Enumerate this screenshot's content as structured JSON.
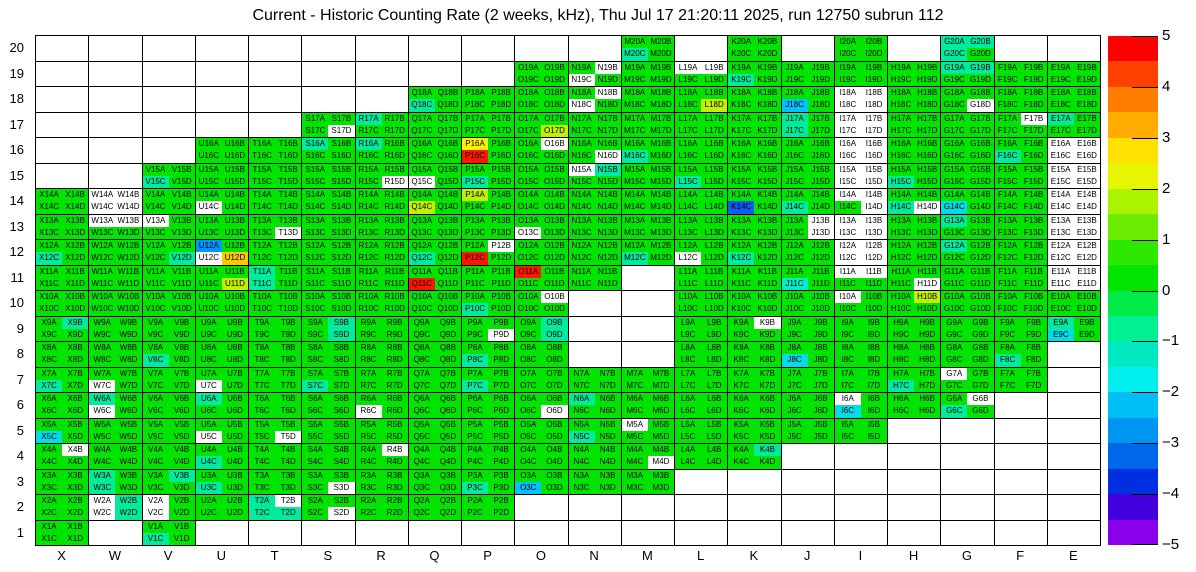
{
  "title": "Current - Historic Counting Rate (2 weeks, kHz), Thu Jul 17 21:20:11 2025, run 12750 subrun 112",
  "chart_data": {
    "type": "heatmap",
    "title": "Current - Historic Counting Rate (2 weeks, kHz), Thu Jul 17 21:20:11 2025, run 12750 subrun 112",
    "columns": [
      "X",
      "W",
      "V",
      "U",
      "T",
      "S",
      "R",
      "Q",
      "P",
      "O",
      "N",
      "M",
      "L",
      "K",
      "J",
      "I",
      "H",
      "G",
      "F",
      "E"
    ],
    "rows": [
      20,
      19,
      18,
      17,
      16,
      15,
      14,
      13,
      12,
      11,
      10,
      9,
      8,
      7,
      6,
      5,
      4,
      3,
      2,
      1
    ],
    "quarters": [
      "A",
      "B",
      "C",
      "D"
    ],
    "label_format": "{col}{row}{quarter}",
    "palette": {
      "g": "#00E400",
      "t": "#00EC9C",
      "c": "#00DDE6",
      "m": "#00EFC8",
      "s": "#00C3FF",
      "b": "#0095FF",
      "B": "#0A5CF5",
      "y": "#FFF300",
      "o": "#FFC800",
      "l": "#C3F000",
      "r": "#FF1500",
      "w": "#FFFFFF"
    },
    "legend": "quarter color codes: g=green ~0.5, t=teal ~-1, c=cyan ~-1.5, m=teal-cyan, s=sky-blue ~-2.5, b=blue ~-3, B=deep-blue ~-3.5, y=yellow ~3, o=orange ~3.5, l=yellow-green ~2, r=red ~5, w=white/no-data, null=empty cell",
    "cells": [
      [
        null,
        null,
        null,
        null,
        null,
        null,
        null,
        null,
        null,
        null,
        null,
        "ggtg",
        null,
        "gggg",
        null,
        "gggg",
        null,
        "tttg",
        null,
        null
      ],
      [
        null,
        null,
        null,
        null,
        null,
        null,
        null,
        null,
        null,
        "gggg",
        "gwwg",
        "gggg",
        "wwgg",
        "ggtg",
        "gggg",
        "gggg",
        "gggg",
        "ttgg",
        "gggg",
        "gggg"
      ],
      [
        null,
        null,
        null,
        null,
        null,
        null,
        null,
        "ggtg",
        "gggg",
        "gggg",
        "gwwg",
        "gggg",
        "gggl",
        "gggg",
        "ggsg",
        "wwww",
        "gggg",
        "gggw",
        "gggg",
        "gggg"
      ],
      [
        null,
        null,
        null,
        null,
        null,
        "gggw",
        "tggg",
        "gggg",
        "gggg",
        "gggl",
        "gggg",
        "gggg",
        "gggg",
        "gggg",
        "tgtg",
        "wwww",
        "gggg",
        "gggg",
        "gwgg",
        "tggg"
      ],
      [
        null,
        null,
        null,
        "gggg",
        "gggg",
        "tggg",
        "tggg",
        "gggg",
        "ygrg",
        "gwgg",
        "gggw",
        "ggtg",
        "gggg",
        "gggg",
        "gggg",
        "wwww",
        "gggg",
        "gggg",
        "ggtg",
        "wwww"
      ],
      [
        null,
        null,
        "ggtg",
        "gggg",
        "gggg",
        "gggg",
        "gggw",
        "ggwg",
        "ggtg",
        "gggg",
        "wtgg",
        "gggg",
        "ggtg",
        "gggg",
        "gggg",
        "wwww",
        "ggtg",
        "gggg",
        "gggg",
        "wwww"
      ],
      [
        "gggg",
        "wwww",
        "gggg",
        "ggwg",
        "gggg",
        "gggg",
        "gggg",
        "gglg",
        "lggg",
        "gggg",
        "gggg",
        "gggg",
        "gggg",
        "ggBg",
        "ggtg",
        "wwgw",
        "ggtw",
        "ggcg",
        "gggg",
        "wwww"
      ],
      [
        "gggg",
        "wwgg",
        "wggg",
        "gggg",
        "gggw",
        "gggg",
        "gggg",
        "gggg",
        "gggg",
        "ggwg",
        "gggg",
        "gggg",
        "gggg",
        "gggg",
        "gwgw",
        "wwww",
        "gggg",
        "tggg",
        "gggg",
        "wwww"
      ],
      [
        "ggtg",
        "gggg",
        "gggt",
        "bgwo",
        "gggg",
        "gggg",
        "gggg",
        "ggtg",
        "gwrg",
        "gggg",
        "gggg",
        "ggtg",
        "ggwg",
        "ggtg",
        "gggg",
        "wwww",
        "gggg",
        "tggg",
        "gggg",
        "wwww"
      ],
      [
        "gggg",
        "gggg",
        "gggg",
        "gggl",
        "tgtg",
        "gggg",
        "gggg",
        "ggrg",
        "gggg",
        "rggg",
        "gggg",
        null,
        "gggg",
        "gggg",
        "ggmg",
        "wwgg",
        "gggw",
        "gggg",
        "gggg",
        "wwww"
      ],
      [
        "gggg",
        "gggg",
        "gggg",
        "gggg",
        "gggg",
        "gggg",
        "gggg",
        "gggg",
        "ggtg",
        "gwgg",
        null,
        null,
        "gggg",
        "gggg",
        "gggg",
        "wggg",
        "glgg",
        "gggg",
        "gggg",
        "gggg"
      ],
      [
        "gtgg",
        "gggg",
        "gggg",
        "gggg",
        "gggg",
        "gtgt",
        "gggg",
        "gggg",
        "gggw",
        "gtgt",
        null,
        null,
        "gggg",
        "gwgg",
        "gggg",
        "gggg",
        "gggg",
        "gggg",
        "gggg",
        "tgcg"
      ],
      [
        "gggg",
        "gggg",
        "ggtg",
        "gggg",
        "gggg",
        "gggg",
        "gggg",
        "gggg",
        "ggtg",
        "gggg",
        null,
        null,
        "gggg",
        "gggg",
        "ggcg",
        "gggg",
        "gggg",
        "gggg",
        "ggtg",
        null
      ],
      [
        "ggtg",
        "ggwg",
        "gggg",
        "ggwg",
        "gggg",
        "ggtg",
        "gggg",
        "gggg",
        "ggtg",
        "gggg",
        "gggg",
        "gggg",
        "gggg",
        "gggg",
        "gggg",
        "gggg",
        "ggtg",
        "wggg",
        "gggg",
        null
      ],
      [
        "gggg",
        "tgwg",
        "gggg",
        "tggg",
        "gggg",
        "gggg",
        "ggwg",
        "gggg",
        "gggg",
        "gggw",
        "tggg",
        "gggg",
        "gggg",
        "gggg",
        "gggg",
        "wgcg",
        "gggg",
        "gwtg",
        null,
        null
      ],
      [
        "ggcg",
        "gggg",
        "gggg",
        "ggwg",
        "gggw",
        "gggg",
        "gggg",
        "gggg",
        "gggg",
        "gggg",
        "ggtg",
        "wggg",
        "gggg",
        "gggg",
        "gggg",
        "gggg",
        null,
        null,
        null,
        null
      ],
      [
        "gwgg",
        "gggg",
        "gggg",
        "ggtg",
        "gggg",
        "gggg",
        "gwgg",
        "gggg",
        "gggg",
        "gggg",
        "gggg",
        "gggw",
        "gggg",
        "gtgg",
        null,
        null,
        null,
        null,
        null,
        null
      ],
      [
        "gggg",
        "tgtg",
        "gtgg",
        "ggtg",
        "gggg",
        "gggw",
        "gggg",
        "gggg",
        "ggtg",
        "ggsg",
        "gggg",
        "gggg",
        null,
        null,
        null,
        null,
        null,
        null,
        null,
        null
      ],
      [
        "gggg",
        "wtwt",
        "wgwg",
        "gggg",
        "twtt",
        "gggw",
        "gggg",
        "gggg",
        "gggg",
        null,
        null,
        null,
        null,
        null,
        null,
        null,
        null,
        null,
        null,
        null
      ],
      [
        "gggg",
        null,
        "ggtg",
        null,
        null,
        null,
        null,
        null,
        null,
        null,
        null,
        null,
        null,
        null,
        null,
        null,
        null,
        null,
        null,
        null
      ]
    ],
    "colorbar": {
      "min": -5,
      "max": 5,
      "tick_labels": [
        "5",
        "4",
        "3",
        "2",
        "1",
        "0",
        "−1",
        "−2",
        "−3",
        "−4",
        "−5"
      ],
      "bands_top_to_bottom": [
        "#FF0000",
        "#FF4000",
        "#FF7E00",
        "#FFAB00",
        "#FFE100",
        "#E8F500",
        "#AAF400",
        "#6CEC00",
        "#2EE800",
        "#00E400",
        "#00EA48",
        "#00F192",
        "#00E9C0",
        "#00F0F0",
        "#00BEF6",
        "#0095F0",
        "#0066EA",
        "#002FE2",
        "#4400DC",
        "#8A00EA"
      ]
    }
  }
}
